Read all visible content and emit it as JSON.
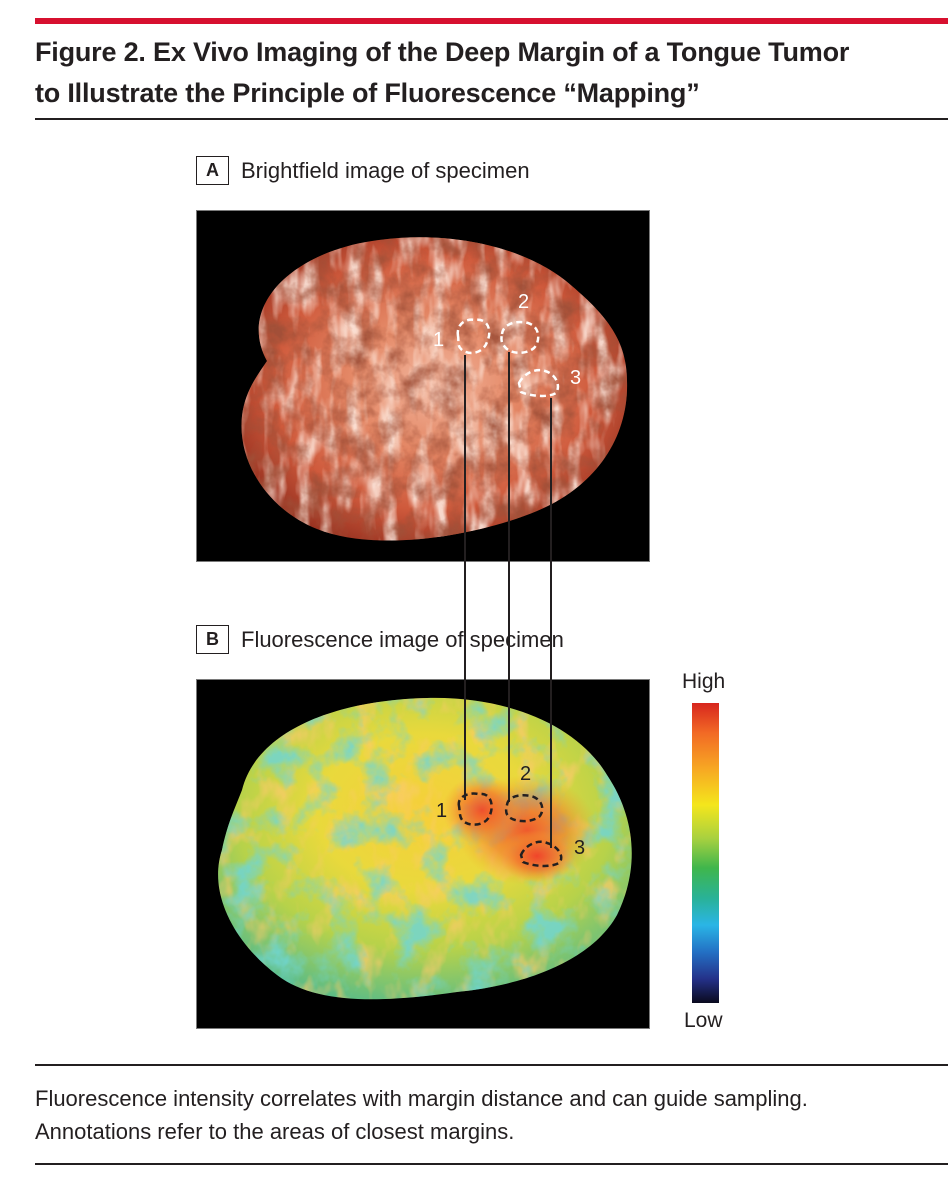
{
  "figure": {
    "title_line1": "Figure 2. Ex Vivo Imaging of the Deep Margin of a Tongue Tumor",
    "title_line2": "to Illustrate the Principle of Fluorescence “Mapping”"
  },
  "panels": [
    {
      "letter": "A",
      "title": "Brightfield image of specimen"
    },
    {
      "letter": "B",
      "title": "Fluorescence image of specimen"
    }
  ],
  "annotations": {
    "region_labels": [
      "1",
      "2",
      "3"
    ]
  },
  "colorbar": {
    "high_label": "High",
    "low_label": "Low"
  },
  "caption": {
    "line1": "Fluorescence intensity correlates with margin distance and can guide sampling.",
    "line2": "Annotations refer to the areas of closest margins."
  },
  "colors": {
    "accent_rule": "#d7102f",
    "text": "#231f20"
  }
}
